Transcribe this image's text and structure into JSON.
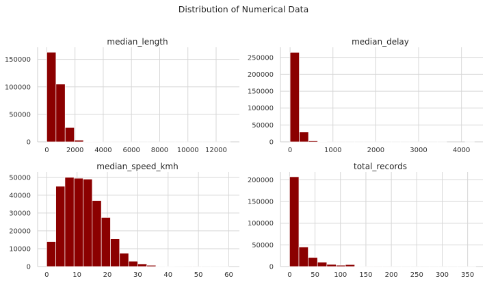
{
  "figure": {
    "suptitle": "Distribution of Numerical Data"
  },
  "style": {
    "bar_color": "#8b0000",
    "grid_color": "#d6d6d6",
    "background": "#ffffff"
  },
  "chart_data": [
    {
      "type": "bar",
      "title": "median_length",
      "grid": true,
      "xlim": [
        -650,
        13650
      ],
      "ylim": [
        0,
        172000
      ],
      "xticks": [
        0,
        2000,
        4000,
        6000,
        8000,
        10000,
        12000
      ],
      "yticks": [
        0,
        50000,
        100000,
        150000
      ],
      "bin_width": 650,
      "bin_starts": [
        0,
        650,
        1300,
        1950,
        2600,
        3250,
        3900,
        4550,
        5200,
        5850,
        6500,
        7150,
        7800,
        8450,
        9100,
        9750,
        10400,
        11050,
        11700,
        12350
      ],
      "values": [
        163000,
        105000,
        26000,
        3000,
        500,
        150,
        80,
        40,
        20,
        10,
        10,
        5,
        5,
        3,
        3,
        2,
        2,
        1,
        1,
        1
      ]
    },
    {
      "type": "bar",
      "title": "median_delay",
      "grid": true,
      "xlim": [
        -225,
        4500
      ],
      "ylim": [
        0,
        280000
      ],
      "xticks": [
        0,
        1000,
        2000,
        3000,
        4000
      ],
      "yticks": [
        0,
        50000,
        100000,
        150000,
        200000,
        250000
      ],
      "bin_width": 215,
      "bin_starts": [
        0,
        215,
        430,
        645,
        860,
        1075,
        1290,
        1505,
        1720,
        1935,
        2150,
        2365,
        2580,
        2795,
        3010,
        3225,
        3440,
        3655,
        3870,
        4085
      ],
      "values": [
        265000,
        29000,
        3000,
        500,
        100,
        50,
        20,
        10,
        5,
        5,
        3,
        2,
        2,
        1,
        1,
        1,
        1,
        0,
        0,
        1
      ]
    },
    {
      "type": "bar",
      "title": "median_speed_kmh",
      "grid": true,
      "xlim": [
        -3,
        63.5
      ],
      "ylim": [
        0,
        53000
      ],
      "xticks": [
        0,
        10,
        20,
        30,
        40,
        50,
        60
      ],
      "yticks": [
        0,
        10000,
        20000,
        30000,
        40000,
        50000
      ],
      "bin_width": 3,
      "bin_starts": [
        0,
        3,
        6,
        9,
        12,
        15,
        18,
        21,
        24,
        27,
        30,
        33,
        36,
        39,
        42,
        45,
        48,
        51,
        54,
        57
      ],
      "values": [
        14000,
        45000,
        50000,
        49500,
        49000,
        37000,
        27500,
        15500,
        7500,
        3000,
        1500,
        700,
        200,
        80,
        40,
        20,
        10,
        5,
        3,
        2
      ]
    },
    {
      "type": "bar",
      "title": "total_records",
      "grid": true,
      "xlim": [
        -18,
        380
      ],
      "ylim": [
        0,
        218000
      ],
      "xticks": [
        0,
        50,
        100,
        150,
        200,
        250,
        300,
        350
      ],
      "yticks": [
        0,
        50000,
        100000,
        150000,
        200000
      ],
      "bin_width": 18.3,
      "bin_starts": [
        0,
        18.3,
        36.6,
        54.9,
        73.2,
        91.5,
        109.8,
        128.1,
        146.4,
        164.7,
        183,
        201.3,
        219.6,
        237.9,
        256.2,
        274.5,
        292.8,
        311.1,
        329.4,
        347.7
      ],
      "values": [
        207000,
        45000,
        21000,
        10000,
        5000,
        3000,
        4500,
        300,
        150,
        80,
        40,
        20,
        10,
        5,
        3,
        2,
        1,
        1,
        1,
        1
      ]
    }
  ]
}
